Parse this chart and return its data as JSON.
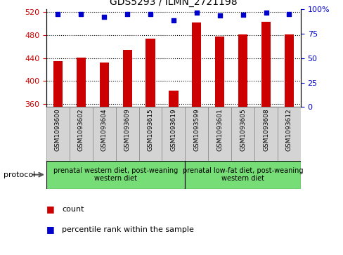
{
  "title": "GDS5293 / ILMN_2721198",
  "samples": [
    "GSM1093600",
    "GSM1093602",
    "GSM1093604",
    "GSM1093609",
    "GSM1093615",
    "GSM1093619",
    "GSM1093599",
    "GSM1093601",
    "GSM1093605",
    "GSM1093608",
    "GSM1093612"
  ],
  "counts": [
    435,
    441,
    432,
    454,
    474,
    383,
    502,
    477,
    481,
    503,
    481
  ],
  "percentiles": [
    95,
    95,
    92,
    95,
    95,
    88,
    96,
    93,
    94,
    96,
    95
  ],
  "ylim_left": [
    355,
    525
  ],
  "ylim_right": [
    0,
    100
  ],
  "yticks_left": [
    360,
    400,
    440,
    480,
    520
  ],
  "yticks_right": [
    0,
    25,
    50,
    75,
    100
  ],
  "bar_color": "#cc0000",
  "dot_color": "#0000cc",
  "group1_label": "prenatal western diet, post-weaning\nwestern diet",
  "group2_label": "prenatal low-fat diet, post-weaning\nwestern diet",
  "group1_count": 6,
  "group2_count": 5,
  "protocol_label": "protocol",
  "legend_count": "count",
  "legend_percentile": "percentile rank within the sample",
  "plot_bg": "#ffffff",
  "cell_bg": "#d4d4d4",
  "green_bg": "#77dd77"
}
